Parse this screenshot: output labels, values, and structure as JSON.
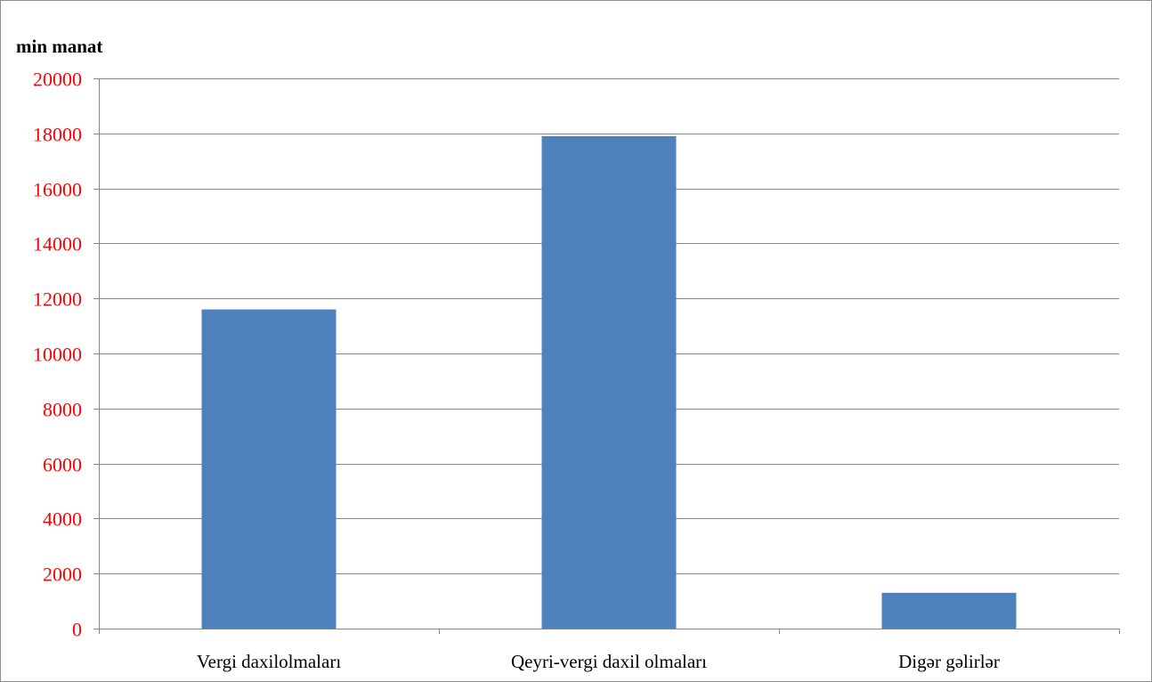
{
  "chart_data": {
    "type": "bar",
    "unit_label": "min manat",
    "categories": [
      "Vergi daxilolmaları",
      "Qeyri-vergi daxil olmaları",
      "Digər gəlirlər"
    ],
    "values": [
      11600,
      17900,
      1300
    ],
    "ylim": [
      0,
      20000
    ],
    "yticks": [
      0,
      2000,
      4000,
      6000,
      8000,
      10000,
      12000,
      14000,
      16000,
      18000,
      20000
    ],
    "grid": true,
    "legend": "none",
    "colors": {
      "bar": "#4f81bd",
      "ytick_text": "#ff0000",
      "grid": "#868686",
      "axis": "#868686"
    }
  }
}
